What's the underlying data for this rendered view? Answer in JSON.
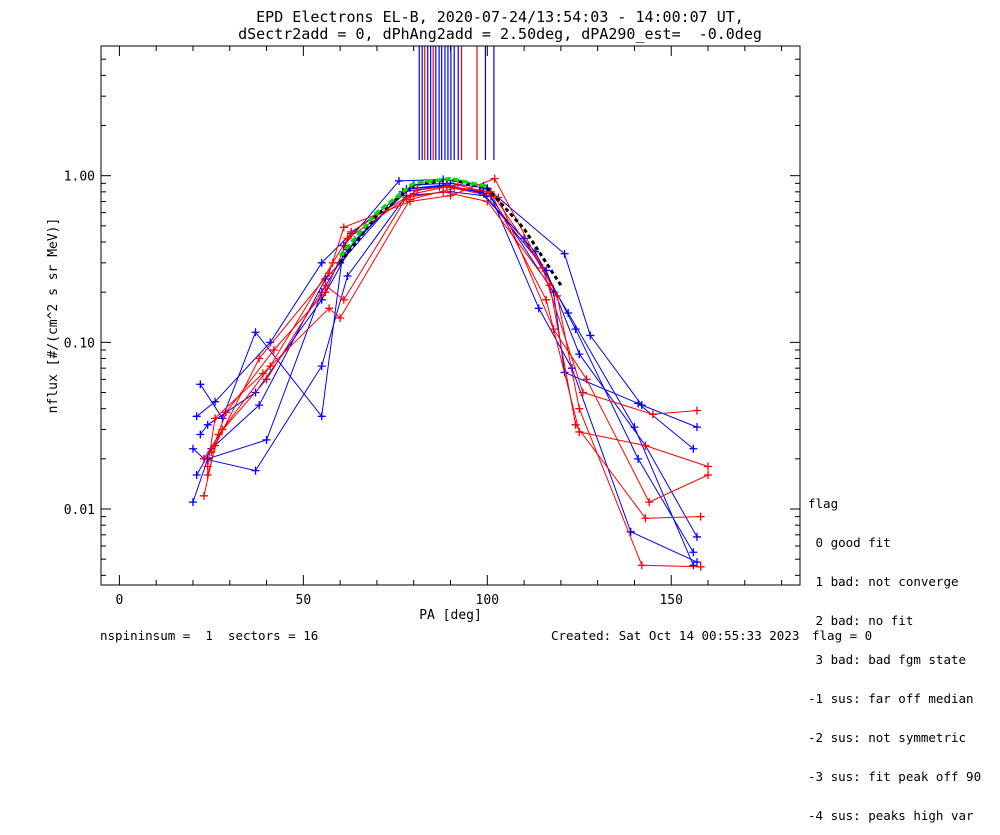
{
  "title_line1": "EPD Electrons EL-B, 2020-07-24/13:54:03 - 14:00:07 UT,",
  "title_line2": "dSectr2add = 0, dPhAng2add = 2.50deg, dPA290_est=  -0.0deg",
  "legend": {
    "title": "flag",
    "items": [
      " 0 good fit",
      " 1 bad: not converge",
      " 2 bad: no fit",
      " 3 bad: bad fgm state",
      "-1 sus: far off median",
      "-2 sus: not symmetric",
      "-3 sus: fit peak off 90",
      "-4 sus: peaks high var"
    ]
  },
  "footer": {
    "left": "nspininsum =  1  sectors = 16",
    "created": "Created: Sat Oct 14 00:55:33 2023",
    "flag": "flag = 0"
  },
  "colors": {
    "series_a": "#0000ff",
    "series_b": "#ff0000",
    "fit": "#00dd00",
    "median": "#000000"
  },
  "chart_data": {
    "type": "line",
    "xlabel": "PA [deg]",
    "ylabel": "nflux [#/(cm^2 s sr MeV)]",
    "xlim": [
      -5,
      185
    ],
    "ylim": [
      0.0035,
      6.0
    ],
    "yscale": "log",
    "xticks": [
      0,
      50,
      100,
      150
    ],
    "yticks": [
      0.01,
      0.1,
      1.0
    ],
    "ytick_labels": [
      "0.01",
      "0.10",
      "1.00"
    ],
    "grid": false,
    "series": [
      {
        "color": "#0000ff",
        "points": [
          [
            20,
            0.011
          ],
          [
            24,
            0.02
          ],
          [
            40,
            0.026
          ],
          [
            55,
            0.2
          ],
          [
            62,
            0.36
          ],
          [
            78,
            0.83
          ],
          [
            88,
            0.87
          ],
          [
            98,
            0.8
          ],
          [
            110,
            0.42
          ],
          [
            122,
            0.15
          ],
          [
            140,
            0.031
          ],
          [
            156,
            0.0046
          ]
        ]
      },
      {
        "color": "#0000ff",
        "points": [
          [
            21,
            0.016
          ],
          [
            25,
            0.023
          ],
          [
            38,
            0.042
          ],
          [
            56,
            0.24
          ],
          [
            60,
            0.3
          ],
          [
            77,
            0.8
          ],
          [
            87,
            0.86
          ],
          [
            98,
            0.82
          ],
          [
            113,
            0.35
          ],
          [
            124,
            0.12
          ],
          [
            141,
            0.02
          ],
          [
            156,
            0.0055
          ]
        ]
      },
      {
        "color": "#0000ff",
        "points": [
          [
            22,
            0.028
          ],
          [
            24,
            0.032
          ],
          [
            37,
            0.05
          ],
          [
            55,
            0.18
          ],
          [
            64,
            0.41
          ],
          [
            79,
            0.84
          ],
          [
            89,
            0.88
          ],
          [
            99,
            0.78
          ],
          [
            116,
            0.27
          ],
          [
            125,
            0.085
          ],
          [
            143,
            0.024
          ],
          [
            157,
            0.0068
          ]
        ]
      },
      {
        "color": "#0000ff",
        "points": [
          [
            21,
            0.036
          ],
          [
            26,
            0.044
          ],
          [
            41,
            0.1
          ],
          [
            55,
            0.3
          ],
          [
            63,
            0.45
          ],
          [
            80,
            0.88
          ],
          [
            90,
            0.9
          ],
          [
            100,
            0.84
          ],
          [
            121,
            0.34
          ],
          [
            128,
            0.11
          ],
          [
            142,
            0.042
          ],
          [
            157,
            0.031
          ]
        ]
      },
      {
        "color": "#0000ff",
        "points": [
          [
            22,
            0.056
          ],
          [
            28,
            0.035
          ],
          [
            37,
            0.115
          ],
          [
            55,
            0.036
          ],
          [
            61,
            0.38
          ],
          [
            76,
            0.93
          ],
          [
            88,
            0.95
          ],
          [
            99,
            0.87
          ],
          [
            118,
            0.2
          ],
          [
            121,
            0.066
          ],
          [
            141,
            0.043
          ],
          [
            156,
            0.023
          ]
        ]
      },
      {
        "color": "#0000ff",
        "points": [
          [
            20,
            0.023
          ],
          [
            23,
            0.02
          ],
          [
            37,
            0.017
          ],
          [
            55,
            0.072
          ],
          [
            62,
            0.25
          ],
          [
            78,
            0.76
          ],
          [
            90,
            0.8
          ],
          [
            101,
            0.75
          ],
          [
            114,
            0.16
          ],
          [
            123,
            0.07
          ],
          [
            139,
            0.0073
          ],
          [
            157,
            0.0048
          ]
        ]
      },
      {
        "color": "#ff0000",
        "points": [
          [
            23,
            0.012
          ],
          [
            26,
            0.024
          ],
          [
            38,
            0.08
          ],
          [
            57,
            0.26
          ],
          [
            61,
            0.49
          ],
          [
            79,
            0.7
          ],
          [
            90,
            0.76
          ],
          [
            102,
            0.96
          ],
          [
            119,
            0.19
          ],
          [
            125,
            0.04
          ],
          [
            142,
            0.0046
          ],
          [
            158,
            0.0045
          ]
        ]
      },
      {
        "color": "#ff0000",
        "points": [
          [
            24,
            0.016
          ],
          [
            27,
            0.028
          ],
          [
            40,
            0.06
          ],
          [
            56,
            0.22
          ],
          [
            61,
            0.18
          ],
          [
            78,
            0.74
          ],
          [
            88,
            0.8
          ],
          [
            100,
            0.7
          ],
          [
            117,
            0.22
          ],
          [
            124,
            0.032
          ],
          [
            143,
            0.0088
          ],
          [
            158,
            0.009
          ]
        ]
      },
      {
        "color": "#ff0000",
        "points": [
          [
            23,
            0.02
          ],
          [
            28,
            0.03
          ],
          [
            41,
            0.072
          ],
          [
            58,
            0.3
          ],
          [
            62,
            0.42
          ],
          [
            80,
            0.78
          ],
          [
            89,
            0.86
          ],
          [
            101,
            0.8
          ],
          [
            115,
            0.28
          ],
          [
            126,
            0.05
          ],
          [
            145,
            0.037
          ],
          [
            157,
            0.039
          ]
        ]
      },
      {
        "color": "#ff0000",
        "points": [
          [
            24,
            0.018
          ],
          [
            26,
            0.035
          ],
          [
            39,
            0.065
          ],
          [
            57,
            0.16
          ],
          [
            60,
            0.14
          ],
          [
            79,
            0.72
          ],
          [
            91,
            0.84
          ],
          [
            103,
            0.74
          ],
          [
            118,
            0.12
          ],
          [
            127,
            0.06
          ],
          [
            144,
            0.011
          ],
          [
            160,
            0.016
          ]
        ]
      },
      {
        "color": "#ff0000",
        "points": [
          [
            25,
            0.022
          ],
          [
            29,
            0.038
          ],
          [
            42,
            0.09
          ],
          [
            56,
            0.2
          ],
          [
            63,
            0.46
          ],
          [
            81,
            0.82
          ],
          [
            92,
            0.88
          ],
          [
            101,
            0.78
          ],
          [
            116,
            0.18
          ],
          [
            125,
            0.029
          ],
          [
            143,
            0.024
          ],
          [
            160,
            0.018
          ]
        ]
      }
    ],
    "fit": {
      "color": "#00dd00",
      "points": [
        [
          60,
          0.33
        ],
        [
          70,
          0.6
        ],
        [
          80,
          0.9
        ],
        [
          90,
          0.96
        ],
        [
          100,
          0.86
        ],
        [
          110,
          0.5
        ],
        [
          120,
          0.24
        ]
      ]
    },
    "median": {
      "color": "#000000",
      "points": [
        [
          60,
          0.3
        ],
        [
          70,
          0.58
        ],
        [
          80,
          0.88
        ],
        [
          90,
          0.95
        ],
        [
          100,
          0.84
        ],
        [
          110,
          0.48
        ],
        [
          120,
          0.22
        ]
      ]
    },
    "spikes": [
      {
        "x": 81.5,
        "color": "#0000ff"
      },
      {
        "x": 82.3,
        "color": "#0000ff"
      },
      {
        "x": 83.0,
        "color": "#ff0000"
      },
      {
        "x": 83.8,
        "color": "#0000ff"
      },
      {
        "x": 84.6,
        "color": "#0000ff"
      },
      {
        "x": 85.3,
        "color": "#ff0000"
      },
      {
        "x": 86.0,
        "color": "#0000ff"
      },
      {
        "x": 86.9,
        "color": "#0000ff"
      },
      {
        "x": 87.6,
        "color": "#0000ff"
      },
      {
        "x": 88.5,
        "color": "#0000ff"
      },
      {
        "x": 89.3,
        "color": "#0000ff"
      },
      {
        "x": 90.1,
        "color": "#0000ff"
      },
      {
        "x": 91.0,
        "color": "#0000ff"
      },
      {
        "x": 92.1,
        "color": "#0000ff"
      },
      {
        "x": 93.0,
        "color": "#ff0000"
      },
      {
        "x": 97.2,
        "color": "#ff0000"
      },
      {
        "x": 99.5,
        "color": "#0000ff"
      },
      {
        "x": 101.8,
        "color": "#0000ff"
      }
    ]
  }
}
